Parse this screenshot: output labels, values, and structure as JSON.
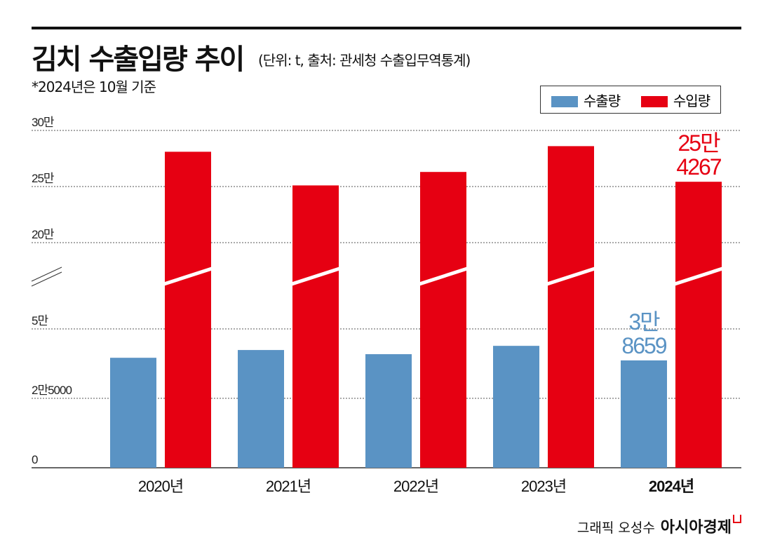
{
  "header": {
    "title": "김치 수출입량 추이",
    "subtitle": "(단위: t, 출처: 관세청 수출입무역통계)",
    "note": "*2024년은 10월 기준"
  },
  "footer": {
    "credit": "그래픽 오성수",
    "brand": "아시아경제"
  },
  "colors": {
    "export": "#5a93c4",
    "import": "#e60012"
  },
  "chart_data": {
    "type": "bar",
    "title": "김치 수출입량 추이",
    "unit": "t",
    "categories": [
      "2020년",
      "2021년",
      "2022년",
      "2023년",
      "2024년"
    ],
    "series": [
      {
        "name": "수출량",
        "values": [
          39600,
          42400,
          40900,
          43900,
          38659
        ]
      },
      {
        "name": "수입량",
        "values": [
          281000,
          251000,
          263000,
          286000,
          254267
        ]
      }
    ],
    "broken_axis": {
      "lower_range": [
        0,
        50000
      ],
      "upper_range": [
        200000,
        300000
      ]
    },
    "yticks": [
      {
        "value": 0,
        "label": "0"
      },
      {
        "value": 25000,
        "label": "2만5000"
      },
      {
        "value": 50000,
        "label": "5만"
      },
      {
        "value": 200000,
        "label": "20만"
      },
      {
        "value": 250000,
        "label": "25만"
      },
      {
        "value": 300000,
        "label": "30만"
      }
    ],
    "annotations": [
      {
        "series": "수출량",
        "category": "2024년",
        "lines": [
          "3만",
          "8659"
        ]
      },
      {
        "series": "수입량",
        "category": "2024년",
        "lines": [
          "25만",
          "4267"
        ]
      }
    ],
    "legend": "top-right",
    "grid": true
  }
}
